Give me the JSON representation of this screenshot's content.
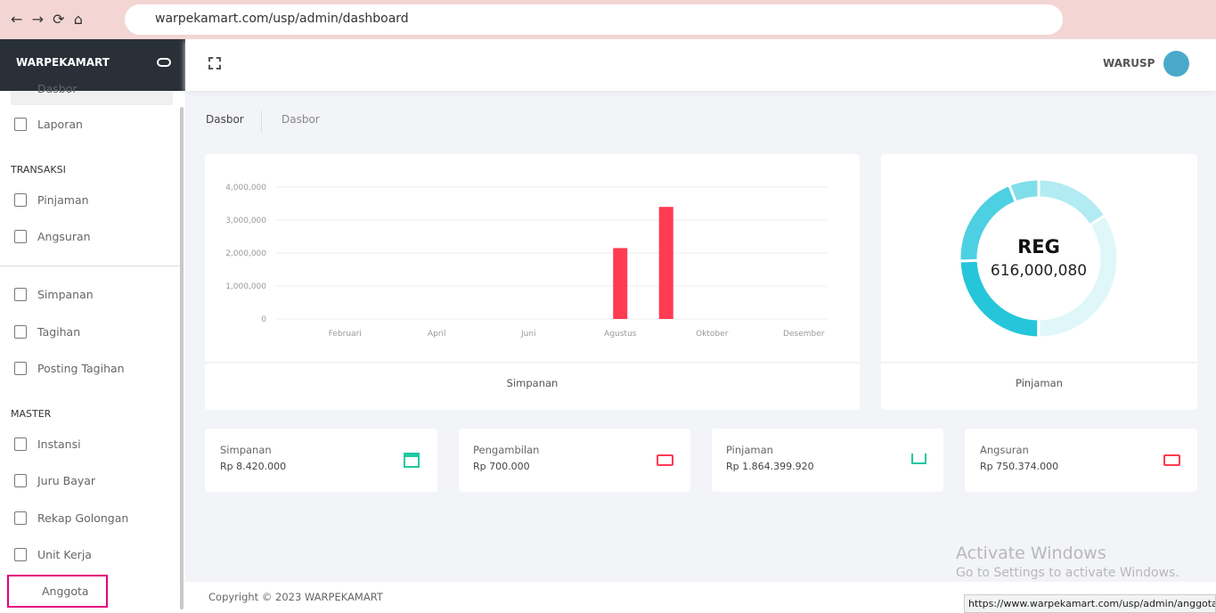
{
  "browser": {
    "url": "warpekamart.com/usp/admin/dashboard",
    "status_url": "https://www.warpekamart.com/usp/admin/anggota"
  },
  "sidebar": {
    "brand": "WARPEKAMART",
    "groups": [
      {
        "items": [
          "Dasbor",
          "Laporan"
        ]
      },
      {
        "heading": "TRANSAKSI",
        "items": [
          "Pinjaman",
          "Angsuran"
        ]
      },
      {
        "items": [
          "Simpanan",
          "Tagihan",
          "Posting Tagihan"
        ]
      },
      {
        "heading": "MASTER",
        "items": [
          "Instansi",
          "Juru Bayar",
          "Rekap Golongan",
          "Unit Kerja",
          "Anggota"
        ]
      }
    ]
  },
  "header": {
    "user": "WARUSP"
  },
  "breadcrumb": [
    "Dasbor",
    "Dasbor"
  ],
  "chart_data": [
    {
      "type": "bar",
      "title": "Simpanan",
      "categories": [
        null,
        "Februari",
        null,
        "April",
        null,
        "Juni",
        null,
        "Agustus",
        null,
        "Oktober",
        null,
        "Desember"
      ],
      "values": [
        0,
        0,
        0,
        0,
        0,
        0,
        0,
        2150000,
        3400000,
        0,
        0,
        0
      ],
      "color": "#ff3b52",
      "ylim": [
        0,
        4000000
      ],
      "yticks": [
        0,
        {
          "value": 1000000,
          "label": "1,000,000"
        },
        {
          "value": 2000000,
          "label": "2,000,000"
        },
        {
          "value": 3000000,
          "label": "3,000,000"
        },
        {
          "value": 4000000,
          "label": "4,000,000"
        }
      ],
      "grid": true
    },
    {
      "type": "pie",
      "title": "Pinjaman",
      "center_label": "REG",
      "center_value": "616,000,080",
      "values": [
        15.8,
        34.2,
        24.4,
        19.4,
        6.1
      ],
      "colors": [
        "#b2ebf2",
        "#e0f7fa",
        "#26c6da",
        "#4dd0e1",
        "#80deea"
      ]
    }
  ],
  "stats": [
    {
      "label": "Simpanan",
      "value": "Rp 8.420.000"
    },
    {
      "label": "Pengambilan",
      "value": "Rp 700.000"
    },
    {
      "label": "Pinjaman",
      "value": "Rp 1.864.399.920"
    },
    {
      "label": "Angsuran",
      "value": "Rp 750.374.000"
    }
  ],
  "footer": "Copyright © 2023 WARPEKAMART",
  "watermark": {
    "title": "Activate Windows",
    "subtitle": "Go to Settings to activate Windows."
  }
}
